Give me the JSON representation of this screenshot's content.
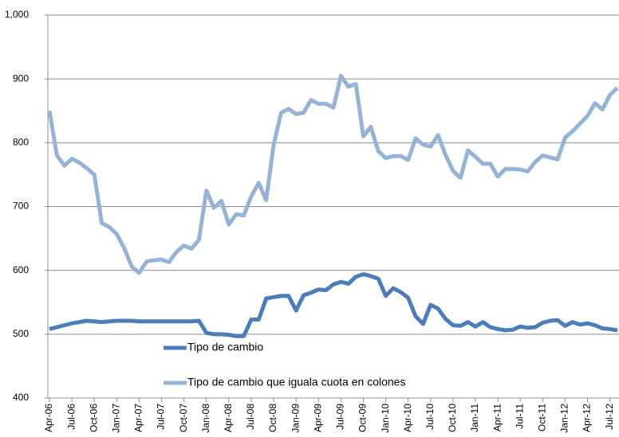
{
  "chart_data": {
    "type": "line",
    "categories": [
      "Apr-06",
      null,
      null,
      "Jul-06",
      null,
      null,
      "Oct-06",
      null,
      null,
      "Jan-07",
      null,
      null,
      "Apr-07",
      null,
      null,
      "Jul-07",
      null,
      null,
      "Oct-07",
      null,
      null,
      "Jan-08",
      null,
      null,
      "Apr-08",
      null,
      null,
      "Jul-08",
      null,
      null,
      "Oct-08",
      null,
      null,
      "Jan-09",
      null,
      null,
      "Apr-09",
      null,
      null,
      "Jul-09",
      null,
      null,
      "Oct-09",
      null,
      null,
      "Jan-10",
      null,
      null,
      "Apr-10",
      null,
      null,
      "Jul-10",
      null,
      null,
      "Oct-10",
      null,
      null,
      "Jan-11",
      null,
      null,
      "Apr-11",
      null,
      null,
      "Jul-11",
      null,
      null,
      "Oct-11",
      null,
      null,
      "Jan-12",
      null,
      null,
      "Apr-12",
      null,
      null,
      "Jul-12",
      null
    ],
    "series": [
      {
        "name": "Tipo de cambio",
        "color": "#4a7ebb",
        "values": [
          508,
          511,
          514,
          517,
          519,
          521,
          520,
          519,
          520,
          521,
          521,
          521,
          520,
          520,
          520,
          520,
          520,
          520,
          520,
          520,
          521,
          502,
          500,
          500,
          499,
          497,
          497,
          523,
          523,
          556,
          558,
          560,
          560,
          537,
          561,
          565,
          570,
          569,
          578,
          582,
          579,
          590,
          594,
          591,
          587,
          560,
          572,
          566,
          557,
          528,
          516,
          546,
          540,
          524,
          514,
          513,
          519,
          512,
          519,
          511,
          508,
          506,
          507,
          512,
          510,
          511,
          518,
          521,
          522,
          513,
          519,
          515,
          517,
          514,
          509,
          508,
          506
        ]
      },
      {
        "name": "Tipo de cambio que iguala cuota en colones",
        "color": "#95b3d7",
        "values": [
          850,
          780,
          764,
          775,
          769,
          760,
          750,
          674,
          668,
          657,
          635,
          606,
          596,
          614,
          616,
          617,
          613,
          629,
          639,
          634,
          648,
          725,
          698,
          709,
          672,
          688,
          686,
          716,
          737,
          710,
          797,
          847,
          853,
          845,
          847,
          867,
          861,
          861,
          855,
          905,
          888,
          892,
          810,
          825,
          787,
          776,
          779,
          779,
          773,
          807,
          797,
          794,
          812,
          781,
          756,
          745,
          788,
          778,
          767,
          767,
          747,
          759,
          759,
          758,
          755,
          770,
          780,
          777,
          774,
          808,
          818,
          830,
          842,
          862,
          852,
          875,
          886
        ]
      }
    ],
    "ylim": [
      400,
      1000
    ],
    "yticks": [
      400,
      500,
      600,
      700,
      800,
      900,
      {
        "value": 1000,
        "label": "1,000"
      }
    ],
    "grid": true
  }
}
